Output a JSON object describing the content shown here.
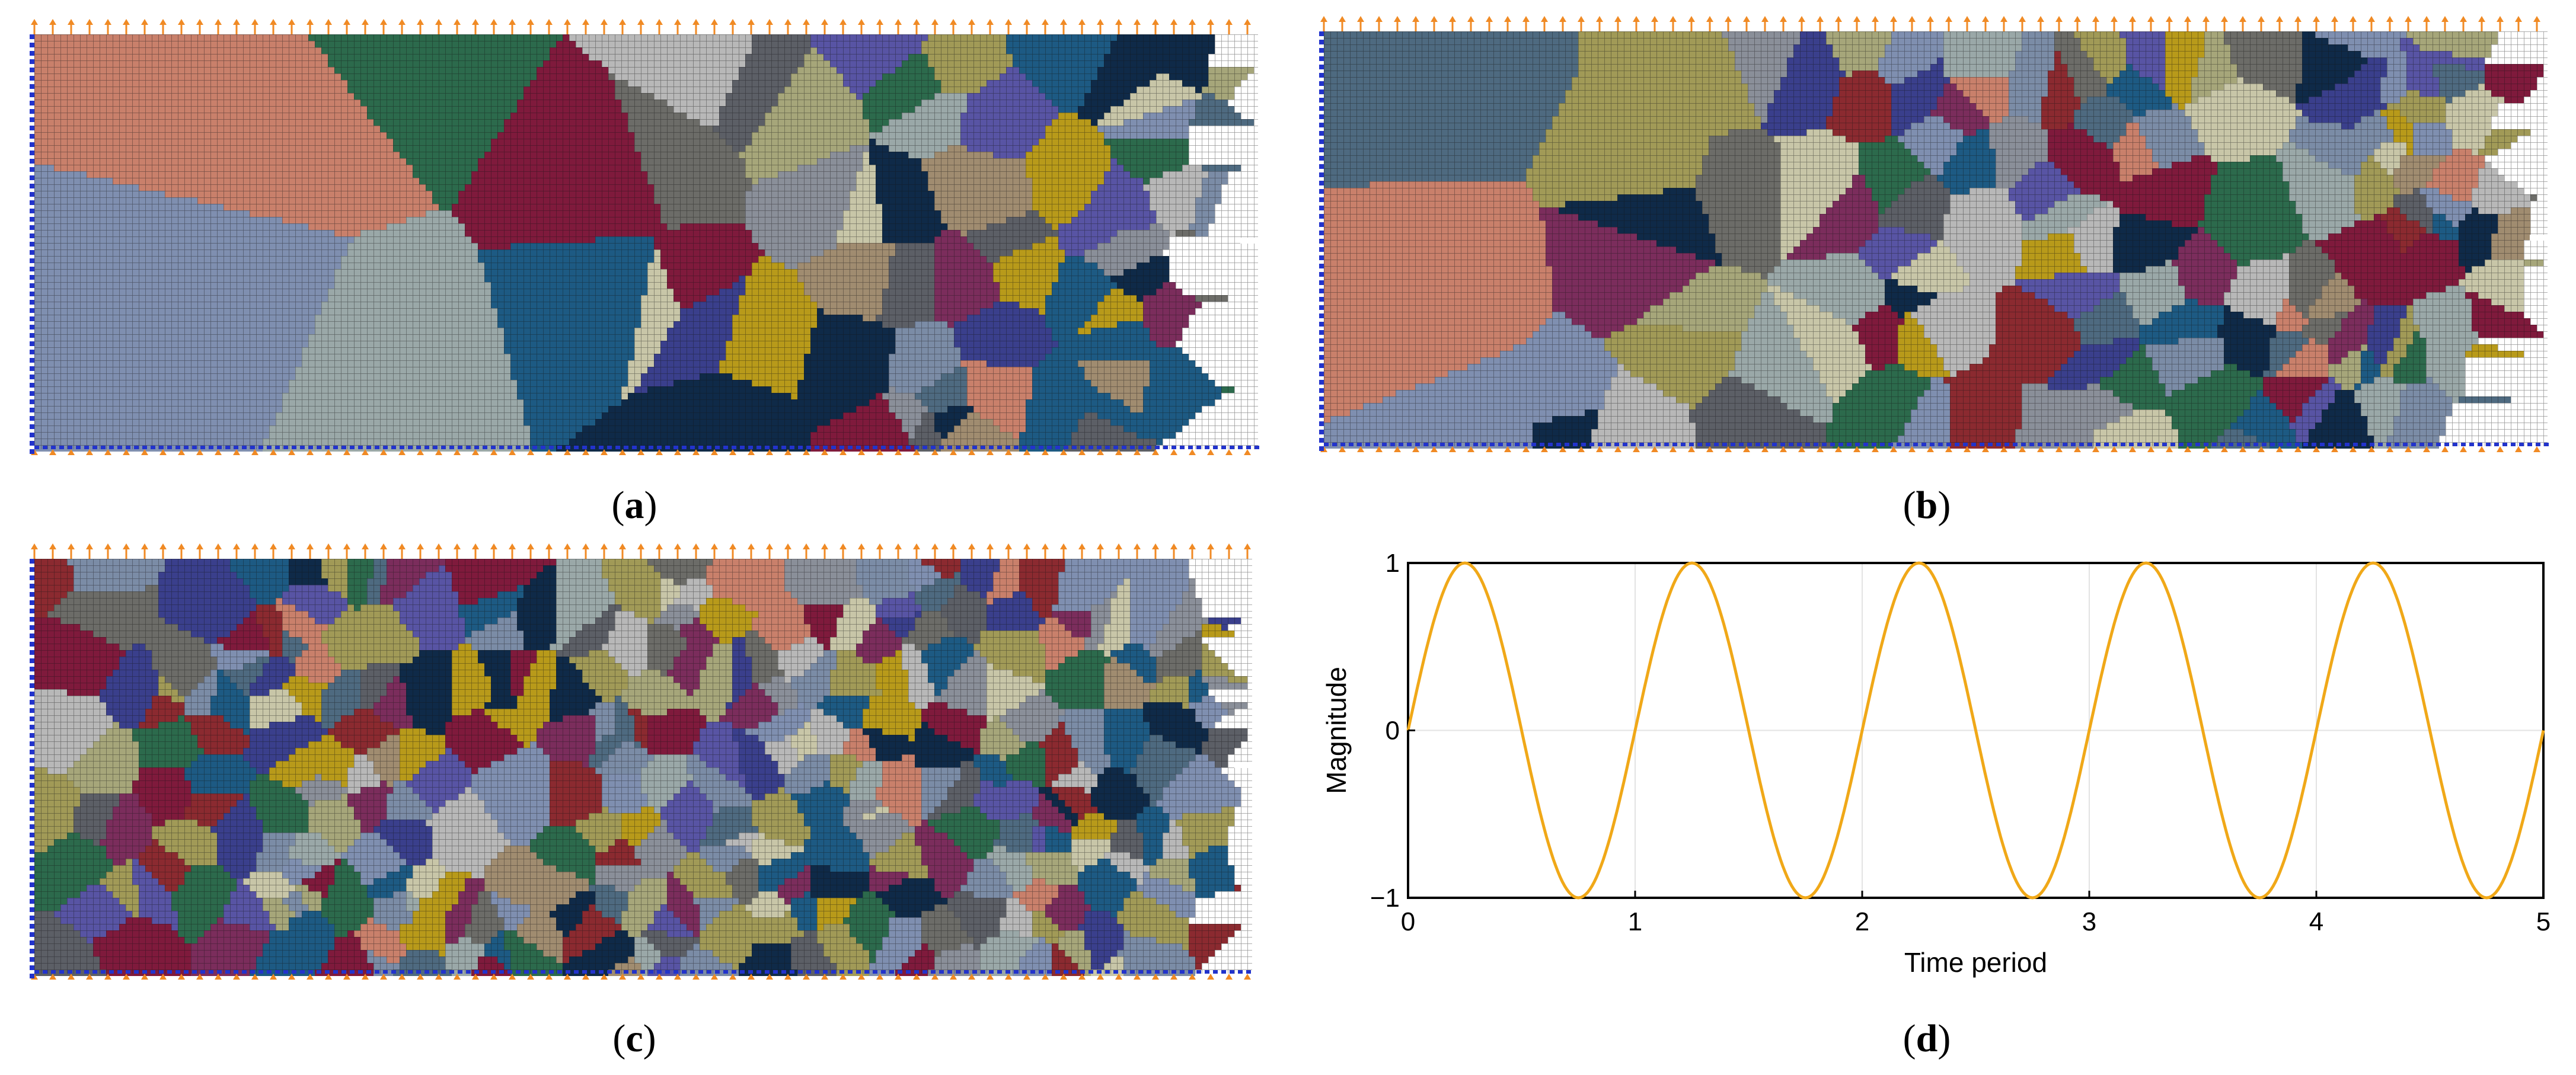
{
  "panels": [
    {
      "id": "a",
      "label": "a",
      "grain_density": "coarse"
    },
    {
      "id": "b",
      "label": "b",
      "grain_density": "medium"
    },
    {
      "id": "c",
      "label": "c",
      "grain_density": "fine"
    },
    {
      "id": "d",
      "label": "d"
    }
  ],
  "colors": {
    "grid_line": "#111111",
    "force_arrow": "#f08a24",
    "boundary_marker": "#2233cc",
    "sine_curve": "#f0a818",
    "palette": [
      "#7f8fb0",
      "#8b2a30",
      "#1d5a83",
      "#c9806b",
      "#6c6c68",
      "#a19a57",
      "#9aa8a8",
      "#3a3f8c",
      "#5c5f66",
      "#7b2d5c",
      "#5854a4",
      "#2c6a4c",
      "#7f1a3c",
      "#b89a1a",
      "#c8c6a8",
      "#a6a67a",
      "#0f2a48",
      "#7b8ca6",
      "#b8b8b8",
      "#8a8f99",
      "#4e6a80",
      "#a08c70"
    ]
  },
  "chart_data": {
    "type": "line",
    "title": "",
    "xlabel": "Time period",
    "ylabel": "Magnitude",
    "xlim": [
      0,
      5
    ],
    "ylim": [
      -1,
      1
    ],
    "xticks": [
      "0",
      "1",
      "2",
      "3",
      "4",
      "5"
    ],
    "yticks": [
      "1",
      "0",
      "−1"
    ],
    "grid": true,
    "series": [
      {
        "function": "sin(2*pi*x)",
        "x_range": [
          0,
          5
        ],
        "samples": 500
      }
    ]
  }
}
